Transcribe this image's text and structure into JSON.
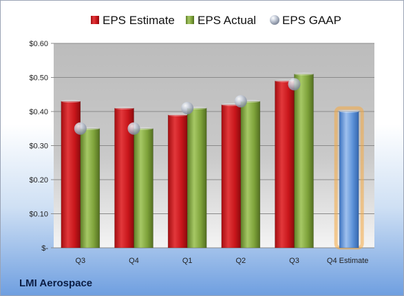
{
  "company": "LMI Aerospace",
  "legend": [
    {
      "label": "EPS Estimate",
      "marker": "estimate-square",
      "color": "#c8161b"
    },
    {
      "label": "EPS Actual",
      "marker": "actual-square",
      "color": "#7ea23a"
    },
    {
      "label": "EPS GAAP",
      "marker": "gaap-sphere",
      "color": "#aab4c6"
    }
  ],
  "chart_data": {
    "type": "bar",
    "categories": [
      "Q3",
      "Q4",
      "Q1",
      "Q2",
      "Q3",
      "Q4 Estimate"
    ],
    "series": [
      {
        "name": "EPS Estimate",
        "values": [
          0.43,
          0.41,
          0.39,
          0.42,
          0.49,
          null
        ],
        "color": "#c8161b"
      },
      {
        "name": "EPS Actual",
        "values": [
          0.35,
          0.35,
          0.41,
          0.43,
          0.51,
          null
        ],
        "color": "#7ea23a"
      },
      {
        "name": "EPS GAAP",
        "values": [
          0.35,
          0.35,
          0.41,
          0.43,
          0.48,
          null
        ],
        "color": "#aab4c6",
        "style": "marker"
      },
      {
        "name": "Q4 Estimate",
        "values": [
          null,
          null,
          null,
          null,
          null,
          0.4
        ],
        "color": "#5b91d8",
        "highlight": "#f6a942"
      }
    ],
    "y_ticks": [
      "$-",
      "$0.10",
      "$0.20",
      "$0.30",
      "$0.40",
      "$0.50",
      "$0.60"
    ],
    "ylim": [
      0,
      0.6
    ],
    "grid": true,
    "legend_position": "top"
  }
}
